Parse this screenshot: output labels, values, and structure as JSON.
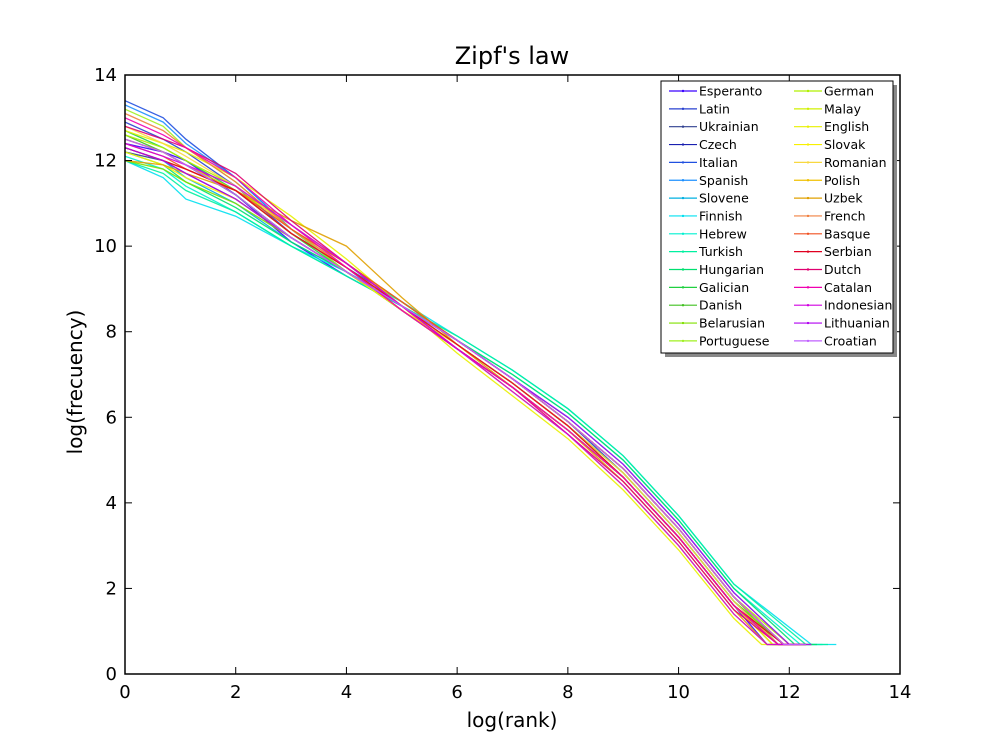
{
  "chart_data": {
    "type": "line",
    "title": "Zipf's law",
    "xlabel": "log(rank)",
    "ylabel": "log(frecuency)",
    "xlim": [
      0,
      14
    ],
    "ylim": [
      0,
      14
    ],
    "xticks": [
      "0",
      "2",
      "4",
      "6",
      "8",
      "10",
      "12",
      "14"
    ],
    "yticks": [
      "0",
      "2",
      "4",
      "6",
      "8",
      "10",
      "12",
      "14"
    ],
    "grid": false,
    "legend_position": "top-right",
    "series": [
      {
        "name": "Esperanto",
        "color": "#3a00ff",
        "x": [
          0,
          0.69,
          1.1,
          2,
          3,
          4,
          5,
          6,
          7,
          8,
          9,
          10,
          11,
          11.6,
          12.0
        ],
        "y": [
          12.4,
          12.2,
          12.0,
          11.2,
          10.1,
          9.3,
          8.6,
          7.7,
          6.8,
          5.8,
          4.6,
          3.2,
          1.6,
          0.69,
          0.69
        ]
      },
      {
        "name": "Latin",
        "color": "#2840d0",
        "x": [
          0,
          0.69,
          1.1,
          2,
          3,
          4,
          5,
          6,
          7,
          8,
          9,
          10,
          11,
          11.8,
          12.2
        ],
        "y": [
          12.9,
          12.5,
          12.2,
          11.4,
          10.3,
          9.5,
          8.7,
          7.8,
          6.9,
          5.9,
          4.7,
          3.3,
          1.7,
          0.69,
          0.69
        ]
      },
      {
        "name": "Ukrainian",
        "color": "#304090",
        "x": [
          0,
          0.69,
          1.1,
          2,
          3,
          4,
          5,
          6,
          7,
          8,
          9,
          10,
          11,
          11.9,
          12.3
        ],
        "y": [
          12.2,
          12.0,
          11.7,
          11.1,
          10.2,
          9.4,
          8.6,
          7.8,
          6.9,
          5.9,
          4.8,
          3.4,
          1.8,
          0.69,
          0.69
        ]
      },
      {
        "name": "Czech",
        "color": "#1a20b0",
        "x": [
          0,
          0.69,
          1.1,
          2,
          3,
          4,
          5,
          6,
          7,
          8,
          9,
          10,
          11,
          11.9,
          12.3
        ],
        "y": [
          12.5,
          12.2,
          11.9,
          11.2,
          10.2,
          9.4,
          8.6,
          7.8,
          6.9,
          5.9,
          4.8,
          3.4,
          1.8,
          0.69,
          0.69
        ]
      },
      {
        "name": "Italian",
        "color": "#2050e0",
        "x": [
          0,
          0.69,
          1.1,
          2,
          3,
          4,
          5,
          6,
          7,
          8,
          9,
          10,
          11,
          11.7,
          12.1
        ],
        "y": [
          13.4,
          13.0,
          12.5,
          11.6,
          10.4,
          9.4,
          8.5,
          7.6,
          6.7,
          5.7,
          4.6,
          3.2,
          1.6,
          0.69,
          0.69
        ]
      },
      {
        "name": "Spanish",
        "color": "#1e90ff",
        "x": [
          0,
          0.69,
          1.1,
          2,
          3,
          4,
          5,
          6,
          7,
          8,
          9,
          10,
          11,
          11.8,
          12.2
        ],
        "y": [
          13.3,
          12.9,
          12.4,
          11.6,
          10.4,
          9.4,
          8.5,
          7.6,
          6.7,
          5.7,
          4.6,
          3.2,
          1.6,
          0.69,
          0.69
        ]
      },
      {
        "name": "Slovene",
        "color": "#00b0e0",
        "x": [
          0,
          0.69,
          1.1,
          2,
          3,
          4,
          5,
          6,
          7,
          8,
          9,
          10,
          11,
          12.0,
          12.4
        ],
        "y": [
          12.3,
          12.0,
          11.6,
          11.0,
          10.1,
          9.4,
          8.6,
          7.8,
          6.9,
          6.0,
          4.9,
          3.5,
          1.9,
          0.69,
          0.69
        ]
      },
      {
        "name": "Finnish",
        "color": "#00e0f0",
        "x": [
          0,
          0.69,
          1.1,
          2,
          3,
          4,
          5,
          6,
          7,
          8,
          9,
          10,
          11,
          12.4,
          12.85
        ],
        "y": [
          12.0,
          11.6,
          11.1,
          10.7,
          10.0,
          9.4,
          8.7,
          7.9,
          7.1,
          6.2,
          5.1,
          3.7,
          2.1,
          0.69,
          0.69
        ]
      },
      {
        "name": "Hebrew",
        "color": "#00f0d0",
        "x": [
          0,
          0.69,
          1.1,
          2,
          3,
          4,
          5,
          6,
          7,
          8,
          9,
          10,
          11,
          12.2,
          12.6
        ],
        "y": [
          12.1,
          11.8,
          11.4,
          10.8,
          10.0,
          9.3,
          8.6,
          7.8,
          7.0,
          6.1,
          5.0,
          3.6,
          2.0,
          0.69,
          0.69
        ]
      },
      {
        "name": "Turkish",
        "color": "#00f0a0",
        "x": [
          0,
          0.69,
          1.1,
          2,
          3,
          4,
          5,
          6,
          7,
          8,
          9,
          10,
          11,
          12.3,
          12.7
        ],
        "y": [
          12.0,
          11.7,
          11.3,
          10.8,
          10.0,
          9.3,
          8.6,
          7.9,
          7.1,
          6.2,
          5.1,
          3.7,
          2.1,
          0.69,
          0.69
        ]
      },
      {
        "name": "Hungarian",
        "color": "#00e070",
        "x": [
          0,
          0.69,
          1.1,
          2,
          3,
          4,
          5,
          6,
          7,
          8,
          9,
          10,
          11,
          12.1,
          12.5
        ],
        "y": [
          12.2,
          11.9,
          11.5,
          10.9,
          10.1,
          9.4,
          8.6,
          7.8,
          7.0,
          6.1,
          5.0,
          3.6,
          2.0,
          0.69,
          0.69
        ]
      },
      {
        "name": "Galician",
        "color": "#20d040",
        "x": [
          0,
          0.69,
          1.1,
          2,
          3,
          4,
          5,
          6,
          7,
          8,
          9,
          10,
          11,
          11.8,
          12.2
        ],
        "y": [
          12.7,
          12.3,
          12.0,
          11.3,
          10.3,
          9.4,
          8.5,
          7.6,
          6.7,
          5.7,
          4.6,
          3.2,
          1.6,
          0.69,
          0.69
        ]
      },
      {
        "name": "Danish",
        "color": "#40c020",
        "x": [
          0,
          0.69,
          1.1,
          2,
          3,
          4,
          5,
          6,
          7,
          8,
          9,
          10,
          11,
          11.9,
          12.3
        ],
        "y": [
          12.6,
          12.2,
          11.9,
          11.2,
          10.2,
          9.4,
          8.6,
          7.7,
          6.8,
          5.8,
          4.7,
          3.3,
          1.7,
          0.69,
          0.69
        ]
      },
      {
        "name": "Belarusian",
        "color": "#80e000",
        "x": [
          0,
          0.69,
          1.1,
          2,
          3,
          4,
          5,
          6,
          7,
          8,
          9,
          10,
          11,
          11.8,
          12.2
        ],
        "y": [
          12.0,
          11.8,
          11.5,
          11.0,
          10.2,
          9.4,
          8.6,
          7.8,
          6.9,
          5.9,
          4.8,
          3.4,
          1.8,
          0.69,
          0.69
        ]
      },
      {
        "name": "Portuguese",
        "color": "#a0f020",
        "x": [
          0,
          0.69,
          1.1,
          2,
          3,
          4,
          5,
          6,
          7,
          8,
          9,
          10,
          11,
          11.7,
          12.1
        ],
        "y": [
          13.2,
          12.8,
          12.3,
          11.5,
          10.4,
          9.4,
          8.5,
          7.6,
          6.7,
          5.7,
          4.6,
          3.2,
          1.6,
          0.69,
          0.69
        ]
      },
      {
        "name": "German",
        "color": "#b0f000",
        "x": [
          0,
          0.69,
          1.1,
          2,
          3,
          4,
          5,
          6,
          7,
          8,
          9,
          10,
          11,
          12.0,
          12.4
        ],
        "y": [
          12.6,
          12.3,
          12.0,
          11.4,
          10.4,
          9.6,
          8.7,
          7.8,
          6.9,
          5.9,
          4.8,
          3.4,
          1.8,
          0.69,
          0.69
        ]
      },
      {
        "name": "Malay",
        "color": "#d0f000",
        "x": [
          0,
          0.69,
          1.1,
          2,
          3,
          4,
          5,
          6,
          7,
          8,
          9,
          10,
          11,
          11.6,
          12.0
        ],
        "y": [
          12.3,
          12.0,
          11.8,
          11.3,
          10.5,
          9.6,
          8.6,
          7.6,
          6.6,
          5.6,
          4.4,
          3.0,
          1.4,
          0.69,
          0.69
        ]
      },
      {
        "name": "English",
        "color": "#e8f000",
        "x": [
          0,
          0.69,
          1.1,
          2,
          3,
          4,
          5,
          6,
          7,
          8,
          9,
          10,
          11,
          11.5,
          11.9
        ],
        "y": [
          12.7,
          12.4,
          12.2,
          11.6,
          10.7,
          9.7,
          8.6,
          7.5,
          6.5,
          5.5,
          4.3,
          2.9,
          1.3,
          0.69,
          0.69
        ]
      },
      {
        "name": "Slovak",
        "color": "#f8f000",
        "x": [
          0,
          0.69,
          1.1,
          2,
          3,
          4,
          5,
          6,
          7,
          8,
          9,
          10,
          11,
          11.7,
          12.1
        ],
        "y": [
          12.2,
          11.9,
          11.6,
          11.1,
          10.2,
          9.4,
          8.5,
          7.7,
          6.8,
          5.8,
          4.6,
          3.2,
          1.6,
          0.69,
          0.69
        ]
      },
      {
        "name": "Romanian",
        "color": "#f8d840",
        "x": [
          0,
          0.69,
          1.1,
          2,
          3,
          4,
          5,
          6,
          7,
          8,
          9,
          10,
          11,
          11.8,
          12.2
        ],
        "y": [
          12.8,
          12.4,
          12.1,
          11.4,
          10.4,
          9.5,
          8.6,
          7.7,
          6.8,
          5.8,
          4.7,
          3.3,
          1.7,
          0.69,
          0.69
        ]
      },
      {
        "name": "Polish",
        "color": "#f0c000",
        "x": [
          0,
          0.69,
          1.1,
          2,
          3,
          4,
          5,
          6,
          7,
          8,
          9,
          10,
          11,
          11.9,
          12.3
        ],
        "y": [
          12.5,
          12.2,
          11.9,
          11.3,
          10.3,
          9.5,
          8.6,
          7.8,
          6.9,
          5.9,
          4.8,
          3.4,
          1.8,
          0.69,
          0.69
        ]
      },
      {
        "name": "Uzbek",
        "color": "#e0a000",
        "x": [
          0,
          0.69,
          1.1,
          2,
          3,
          4,
          5,
          6,
          7,
          8,
          9,
          10,
          11,
          11.6,
          12.0
        ],
        "y": [
          12.0,
          11.9,
          11.7,
          11.3,
          10.6,
          10.0,
          8.8,
          7.7,
          6.7,
          5.7,
          4.5,
          3.1,
          1.5,
          0.69,
          0.69
        ]
      },
      {
        "name": "French",
        "color": "#f08040",
        "x": [
          0,
          0.69,
          1.1,
          2,
          3,
          4,
          5,
          6,
          7,
          8,
          9,
          10,
          11,
          11.8,
          12.2
        ],
        "y": [
          13.1,
          12.7,
          12.3,
          11.5,
          10.4,
          9.5,
          8.5,
          7.6,
          6.7,
          5.7,
          4.6,
          3.2,
          1.6,
          0.69,
          0.69
        ]
      },
      {
        "name": "Basque",
        "color": "#f05020",
        "x": [
          0,
          0.69,
          1.1,
          2,
          3,
          4,
          5,
          6,
          7,
          8,
          9,
          10,
          11,
          11.9,
          12.3
        ],
        "y": [
          12.4,
          12.1,
          11.8,
          11.3,
          10.4,
          9.6,
          8.7,
          7.8,
          6.9,
          5.9,
          4.8,
          3.4,
          1.8,
          0.69,
          0.69
        ]
      },
      {
        "name": "Serbian",
        "color": "#e00020",
        "x": [
          0,
          0.69,
          1.1,
          2,
          3,
          4,
          5,
          6,
          7,
          8,
          9,
          10,
          11,
          11.9,
          12.3
        ],
        "y": [
          12.3,
          12.0,
          11.8,
          11.3,
          10.3,
          9.5,
          8.6,
          7.7,
          6.8,
          5.8,
          4.6,
          3.2,
          1.6,
          0.69,
          0.69
        ]
      },
      {
        "name": "Dutch",
        "color": "#e00070",
        "x": [
          0,
          0.69,
          1.1,
          2,
          3,
          4,
          5,
          6,
          7,
          8,
          9,
          10,
          11,
          11.8,
          12.2
        ],
        "y": [
          12.8,
          12.5,
          12.3,
          11.7,
          10.6,
          9.6,
          8.6,
          7.6,
          6.7,
          5.6,
          4.5,
          3.1,
          1.5,
          0.69,
          0.69
        ]
      },
      {
        "name": "Catalan",
        "color": "#f000b0",
        "x": [
          0,
          0.69,
          1.1,
          2,
          3,
          4,
          5,
          6,
          7,
          8,
          9,
          10,
          11,
          11.8,
          12.2
        ],
        "y": [
          13.0,
          12.6,
          12.3,
          11.6,
          10.5,
          9.5,
          8.5,
          7.6,
          6.7,
          5.7,
          4.6,
          3.2,
          1.6,
          0.69,
          0.69
        ]
      },
      {
        "name": "Indonesian",
        "color": "#d000e0",
        "x": [
          0,
          0.69,
          1.1,
          2,
          3,
          4,
          5,
          6,
          7,
          8,
          9,
          10,
          11,
          11.6,
          12.0
        ],
        "y": [
          12.4,
          12.1,
          11.9,
          11.4,
          10.5,
          9.6,
          8.6,
          7.6,
          6.6,
          5.6,
          4.4,
          3.0,
          1.4,
          0.69,
          0.69
        ]
      },
      {
        "name": "Lithuanian",
        "color": "#b000f0",
        "x": [
          0,
          0.69,
          1.1,
          2,
          3,
          4,
          5,
          6,
          7,
          8,
          9,
          10,
          11,
          12.0,
          12.4
        ],
        "y": [
          12.3,
          12.0,
          11.7,
          11.1,
          10.2,
          9.4,
          8.6,
          7.8,
          6.9,
          6.0,
          4.9,
          3.5,
          1.9,
          0.69,
          0.69
        ]
      },
      {
        "name": "Croatian",
        "color": "#c060ff",
        "x": [
          0,
          0.69,
          1.1,
          2,
          3,
          4,
          5,
          6,
          7,
          8,
          9,
          10,
          11,
          11.9,
          12.3
        ],
        "y": [
          12.5,
          12.2,
          11.9,
          11.2,
          10.2,
          9.4,
          8.6,
          7.8,
          6.9,
          5.9,
          4.8,
          3.4,
          1.8,
          0.69,
          0.69
        ]
      }
    ]
  }
}
